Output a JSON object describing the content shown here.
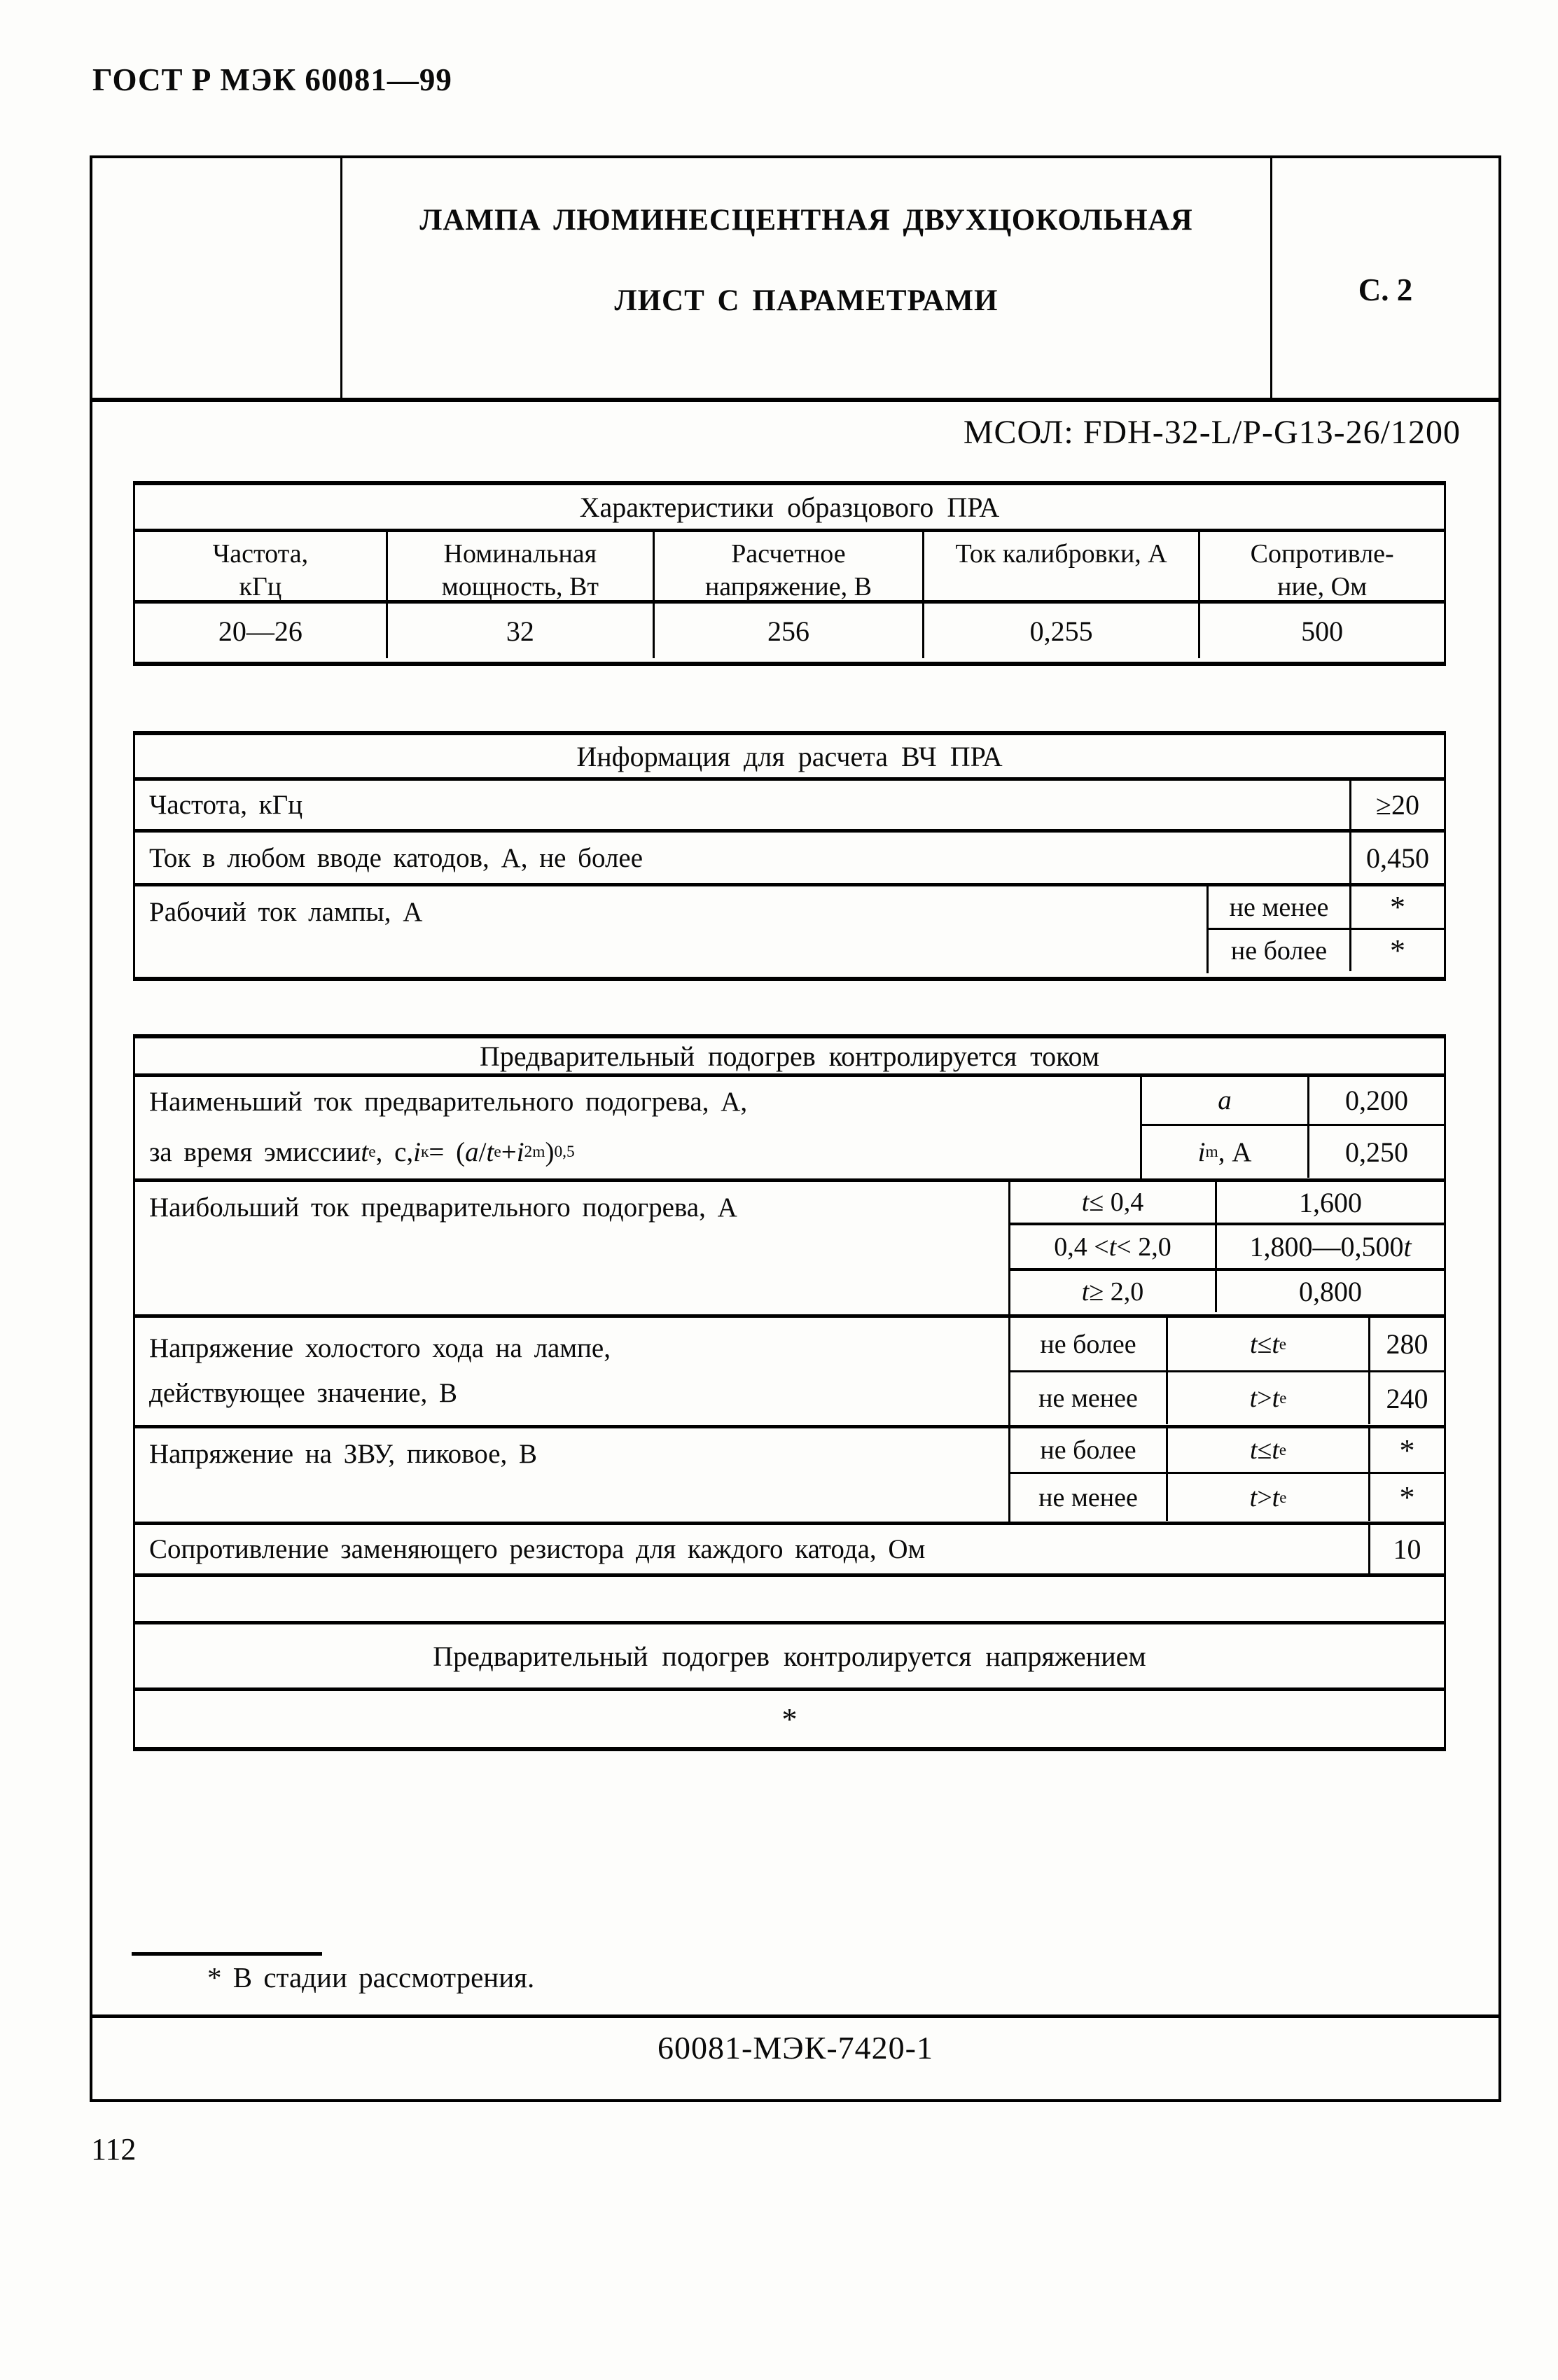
{
  "page": {
    "doc_header": "ГОСТ Р МЭК 60081—99",
    "page_number": "112"
  },
  "title_block": {
    "line1": "ЛАМПА ЛЮМИНЕСЦЕНТНАЯ ДВУХЦОКОЛЬНАЯ",
    "line2": "ЛИСТ С ПАРАМЕТРАМИ",
    "sheet_ref": "С. 2"
  },
  "lamp_code": "МСОЛ: FDH-32-L/P-G13-26/1200",
  "ballast_table": {
    "title": "Характеристики образцового ПРА",
    "headers": [
      {
        "l1": "Частота,",
        "l2": "кГц"
      },
      {
        "l1": "Номинальная",
        "l2": "мощность, Вт"
      },
      {
        "l1": "Расчетное",
        "l2": "напряжение, В"
      },
      {
        "l1": "Ток калибровки, А",
        "l2": ""
      },
      {
        "l1": "Сопротивле-",
        "l2": "ние, Ом"
      }
    ],
    "values": [
      "20—26",
      "32",
      "256",
      "0,255",
      "500"
    ]
  },
  "hf_table": {
    "title": "Информация для расчета ВЧ ПРА",
    "row1": {
      "label": "Частота, кГц",
      "value": "≥20"
    },
    "row2": {
      "label": "Ток в любом вводе катодов, А, не более",
      "value": "0,450"
    },
    "row3": {
      "label": "Рабочий ток лампы, А",
      "sub1": {
        "cond": "не менее",
        "value": "*"
      },
      "sub2": {
        "cond": "не более",
        "value": "*"
      }
    }
  },
  "preheat_current_table": {
    "title": "Предварительный подогрев контролируется током",
    "row_min": {
      "label_line1": "Наименьший ток предварительного подогрева, А,",
      "label_line2_tokens": [
        {
          "t": "n",
          "v": "за время эмиссии "
        },
        {
          "t": "i",
          "v": "t"
        },
        {
          "t": "s",
          "v": "е"
        },
        {
          "t": "n",
          "v": " , с, "
        },
        {
          "t": "i",
          "v": "i"
        },
        {
          "t": "s",
          "v": "к"
        },
        {
          "t": "n",
          "v": " = ("
        },
        {
          "t": "i",
          "v": "a"
        },
        {
          "t": "n",
          "v": "/"
        },
        {
          "t": "i",
          "v": "t"
        },
        {
          "t": "s",
          "v": "е"
        },
        {
          "t": "n",
          "v": " + "
        },
        {
          "t": "i",
          "v": "i"
        },
        {
          "t": "u",
          "v": "2"
        },
        {
          "t": "s",
          "v": "m"
        },
        {
          "t": "n",
          "v": ")"
        },
        {
          "t": "u",
          "v": "0,5"
        }
      ],
      "sub1": {
        "param_tokens": [
          {
            "t": "i",
            "v": "a"
          }
        ],
        "value": "0,200"
      },
      "sub2": {
        "param_tokens": [
          {
            "t": "i",
            "v": "i"
          },
          {
            "t": "s",
            "v": "m"
          },
          {
            "t": "n",
            "v": " , А"
          }
        ],
        "value": "0,250"
      }
    },
    "row_max": {
      "label": "Наибольший ток предварительного подогрева, А",
      "sub1": {
        "cond_tokens": [
          {
            "t": "i",
            "v": "t"
          },
          {
            "t": "n",
            "v": " ≤ 0,4"
          }
        ],
        "value": "1,600"
      },
      "sub2": {
        "cond_tokens": [
          {
            "t": "n",
            "v": "0,4 < "
          },
          {
            "t": "i",
            "v": "t"
          },
          {
            "t": "n",
            "v": " < 2,0"
          }
        ],
        "value_tokens": [
          {
            "t": "n",
            "v": "1,800—0,500"
          },
          {
            "t": "i",
            "v": "t"
          }
        ]
      },
      "sub3": {
        "cond_tokens": [
          {
            "t": "i",
            "v": "t"
          },
          {
            "t": "n",
            "v": " ≥ 2,0"
          }
        ],
        "value": "0,800"
      }
    },
    "row_open_voltage": {
      "label_line1": "Напряжение холостого хода на лампе,",
      "label_line2": "действующее значение, В",
      "sub1": {
        "cond": "не более",
        "time_tokens": [
          {
            "t": "i",
            "v": "t"
          },
          {
            "t": "n",
            "v": " ≤ "
          },
          {
            "t": "i",
            "v": "t"
          },
          {
            "t": "s",
            "v": "е"
          }
        ],
        "value": "280"
      },
      "sub2": {
        "cond": "не менее",
        "time_tokens": [
          {
            "t": "i",
            "v": "t"
          },
          {
            "t": "n",
            "v": " > "
          },
          {
            "t": "i",
            "v": "t"
          },
          {
            "t": "s",
            "v": "е"
          }
        ],
        "value": "240"
      }
    },
    "row_zvu": {
      "label": "Напряжение на ЗВУ, пиковое, В",
      "sub1": {
        "cond": "не более",
        "time_tokens": [
          {
            "t": "i",
            "v": "t"
          },
          {
            "t": "n",
            "v": " ≤ "
          },
          {
            "t": "i",
            "v": "t"
          },
          {
            "t": "s",
            "v": "е"
          }
        ],
        "value": "*"
      },
      "sub2": {
        "cond": "не менее",
        "time_tokens": [
          {
            "t": "i",
            "v": "t"
          },
          {
            "t": "n",
            "v": " > "
          },
          {
            "t": "i",
            "v": "t"
          },
          {
            "t": "s",
            "v": "е"
          }
        ],
        "value": "*"
      }
    },
    "row_resistor": {
      "label": "Сопротивление заменяющего резистора для каждого катода, Ом",
      "value": "10"
    }
  },
  "preheat_voltage_table": {
    "title": "Предварительный подогрев контролируется напряжением",
    "value": "*"
  },
  "footnote": {
    "text": "* В стадии рассмотрения."
  },
  "footer": {
    "code": "60081-МЭК-7420-1"
  }
}
